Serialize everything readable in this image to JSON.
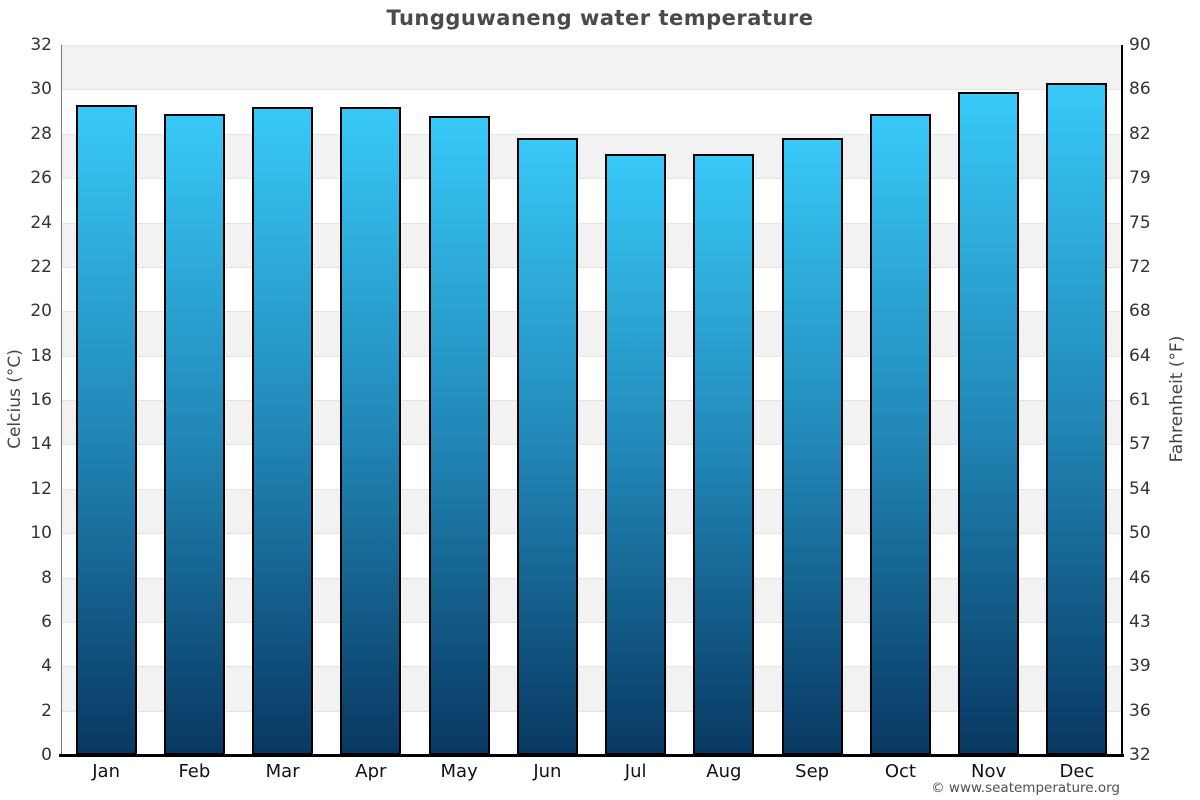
{
  "title": "Tungguwaneng water temperature",
  "copyright": "© www.seatemperature.org",
  "axes": {
    "left_label": "Celcius (°C)",
    "right_label": "Fahrenheit (°F)",
    "left_ticks": [
      32,
      30,
      28,
      26,
      24,
      22,
      20,
      18,
      16,
      14,
      12,
      10,
      8,
      6,
      4,
      2,
      0
    ],
    "right_ticks": [
      90,
      86,
      82,
      79,
      75,
      72,
      68,
      64,
      61,
      57,
      54,
      50,
      46,
      43,
      39,
      36,
      32
    ]
  },
  "chart_data": {
    "type": "bar",
    "title": "Tungguwaneng water temperature",
    "categories": [
      "Jan",
      "Feb",
      "Mar",
      "Apr",
      "May",
      "Jun",
      "Jul",
      "Aug",
      "Sep",
      "Oct",
      "Nov",
      "Dec"
    ],
    "values": [
      29.3,
      28.9,
      29.2,
      29.2,
      28.8,
      27.8,
      27.1,
      27.1,
      27.8,
      28.9,
      29.9,
      30.3
    ],
    "xlabel": "",
    "ylabel_left": "Celcius (°C)",
    "ylabel_right": "Fahrenheit (°F)",
    "ylim": [
      0,
      32
    ],
    "band_step_celsius": 2,
    "grid": "horizontal-bands",
    "legend": "none",
    "colors": {
      "bar_gradient_top": "#38c9f8",
      "bar_gradient_mid": "#2187b7",
      "bar_gradient_bottom": "#083862",
      "bar_border": "#000000",
      "band_gray": "#f2f2f2",
      "band_white": "#ffffff",
      "gridline": "#e4e4e4",
      "title_text": "#4a4a4a"
    }
  }
}
